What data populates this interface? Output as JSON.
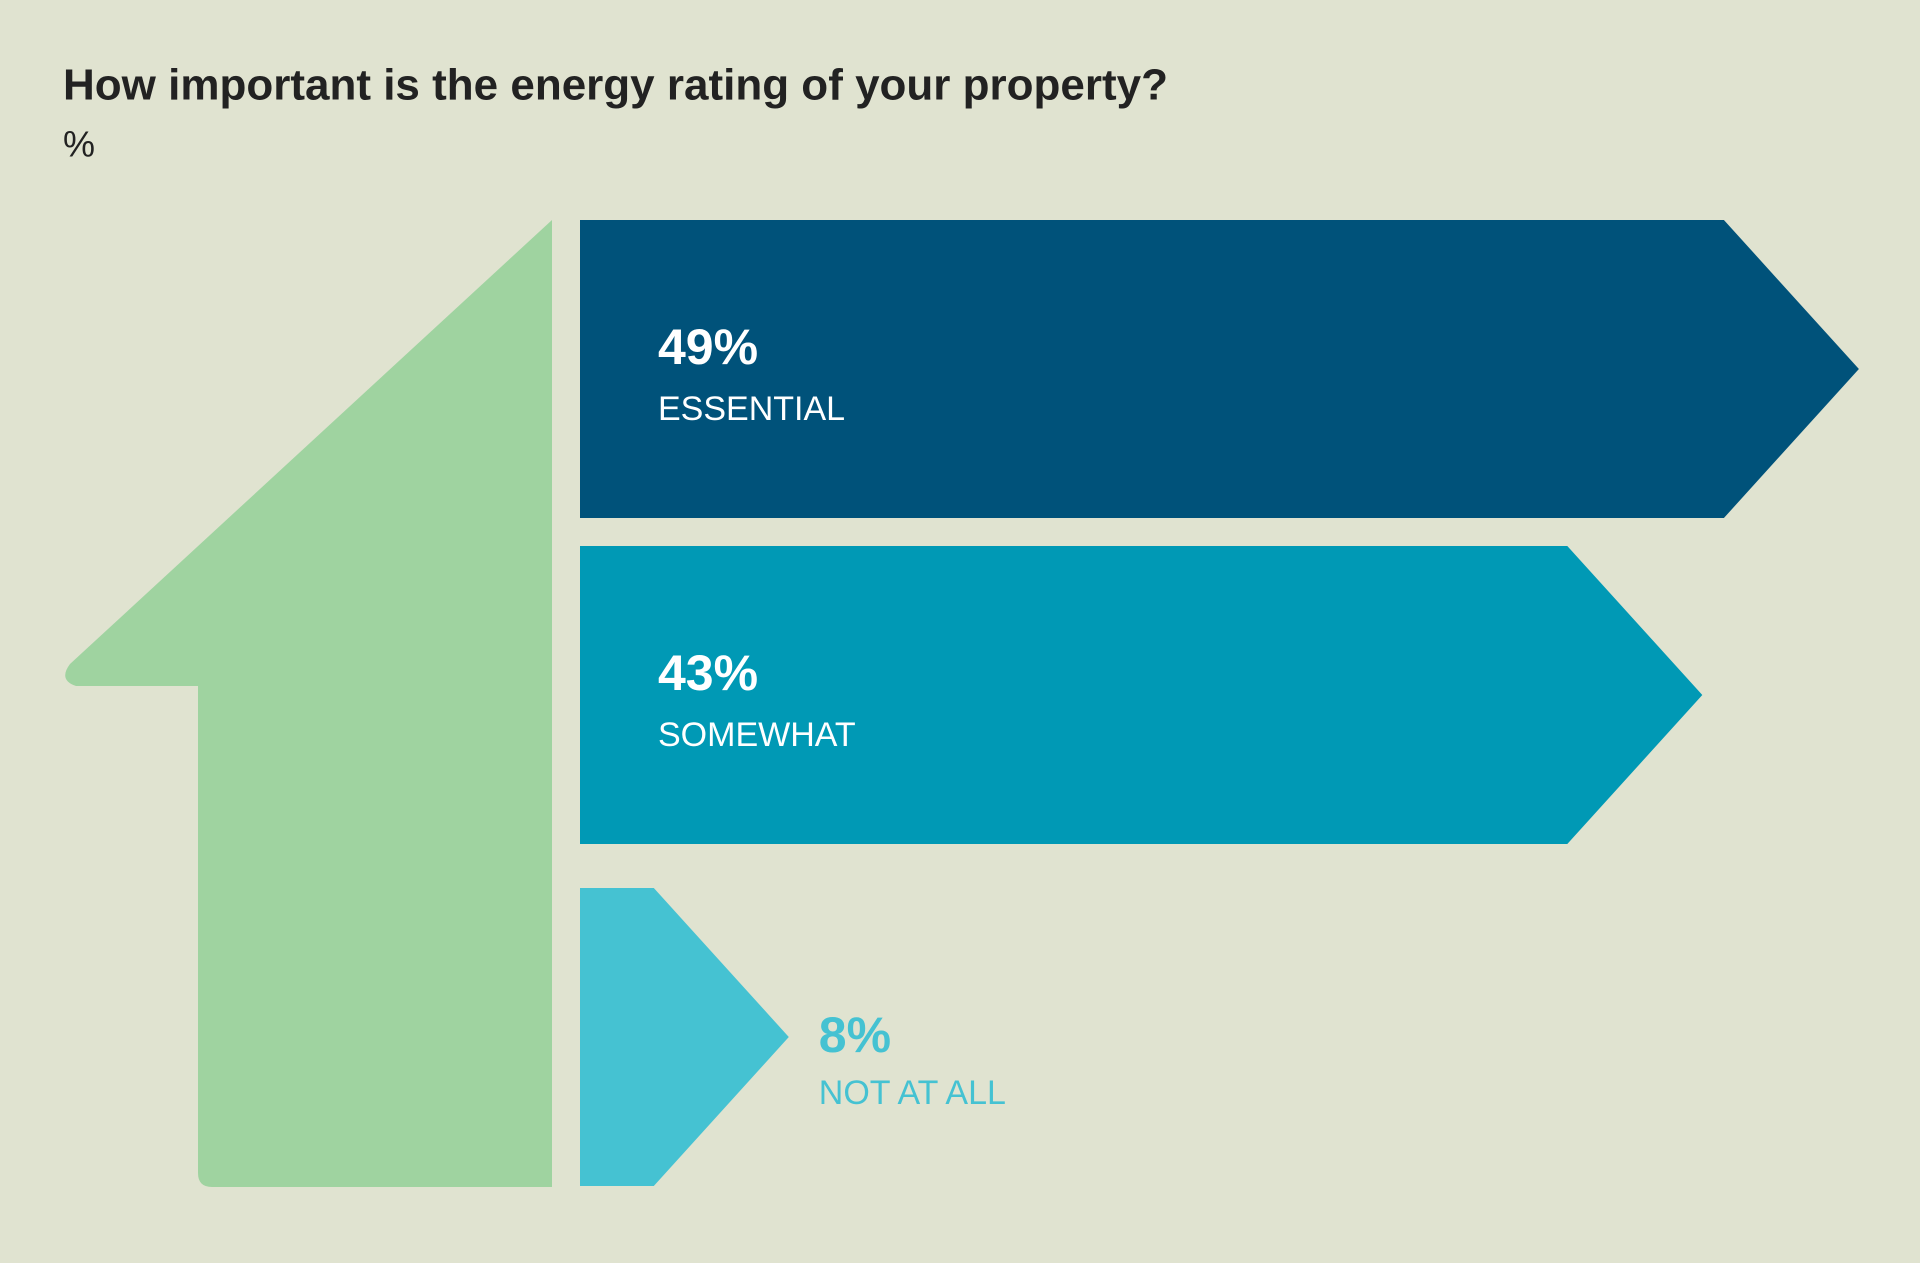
{
  "chart_data": {
    "type": "bar",
    "orientation": "horizontal",
    "title": "How important is the energy rating of your property?",
    "subtitle": "%",
    "categories": [
      "ESSENTIAL",
      "SOMEWHAT",
      "NOT AT ALL"
    ],
    "values": [
      49,
      43,
      8
    ],
    "value_labels": [
      "49%",
      "43%",
      "8%"
    ],
    "colors": [
      "#00527a",
      "#0099b5",
      "#45c2d2"
    ]
  }
}
